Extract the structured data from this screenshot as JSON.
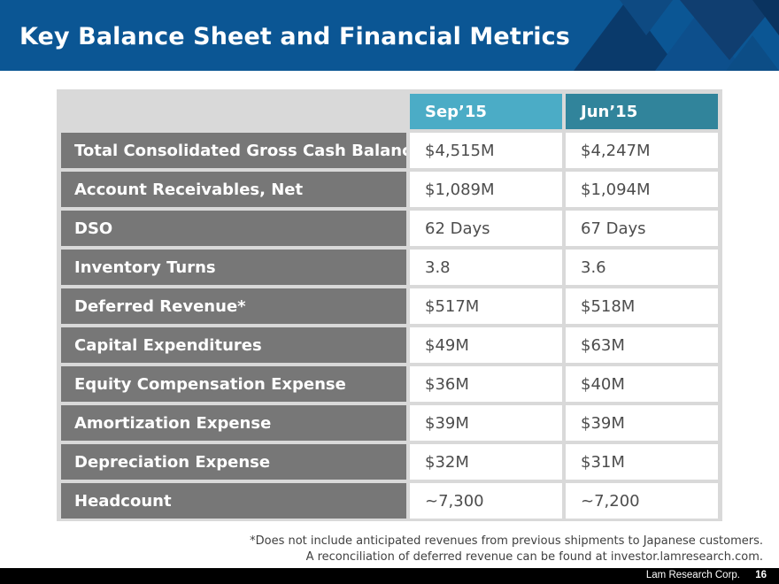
{
  "header": {
    "title": "Key Balance Sheet and Financial Metrics"
  },
  "table": {
    "columns": [
      "Sep’15",
      "Jun’15"
    ],
    "rows": [
      {
        "label": "Total Consolidated Gross Cash Balance",
        "sep15": "$4,515M",
        "jun15": "$4,247M"
      },
      {
        "label": "Account Receivables, Net",
        "sep15": "$1,089M",
        "jun15": "$1,094M"
      },
      {
        "label": "DSO",
        "sep15": "62 Days",
        "jun15": "67 Days"
      },
      {
        "label": "Inventory Turns",
        "sep15": "3.8",
        "jun15": "3.6"
      },
      {
        "label": "Deferred Revenue*",
        "sep15": "$517M",
        "jun15": "$518M"
      },
      {
        "label": "Capital Expenditures",
        "sep15": "$49M",
        "jun15": "$63M"
      },
      {
        "label": "Equity Compensation Expense",
        "sep15": "$36M",
        "jun15": "$40M"
      },
      {
        "label": "Amortization Expense",
        "sep15": "$39M",
        "jun15": "$39M"
      },
      {
        "label": "Depreciation Expense",
        "sep15": "$32M",
        "jun15": "$31M"
      },
      {
        "label": "Headcount",
        "sep15": "~7,300",
        "jun15": "~7,200"
      }
    ]
  },
  "footnote": {
    "line1": "*Does not include anticipated revenues from previous shipments to Japanese customers.",
    "line2": "A reconciliation of deferred revenue can be found at investor.lamresearch.com."
  },
  "footer": {
    "company": "Lam Research Corp.",
    "page_number": "16"
  },
  "colors": {
    "header_bg": "#0b5694",
    "sep_header": "#4bacc6",
    "jun_header": "#31849b",
    "label_bg": "#777777"
  }
}
